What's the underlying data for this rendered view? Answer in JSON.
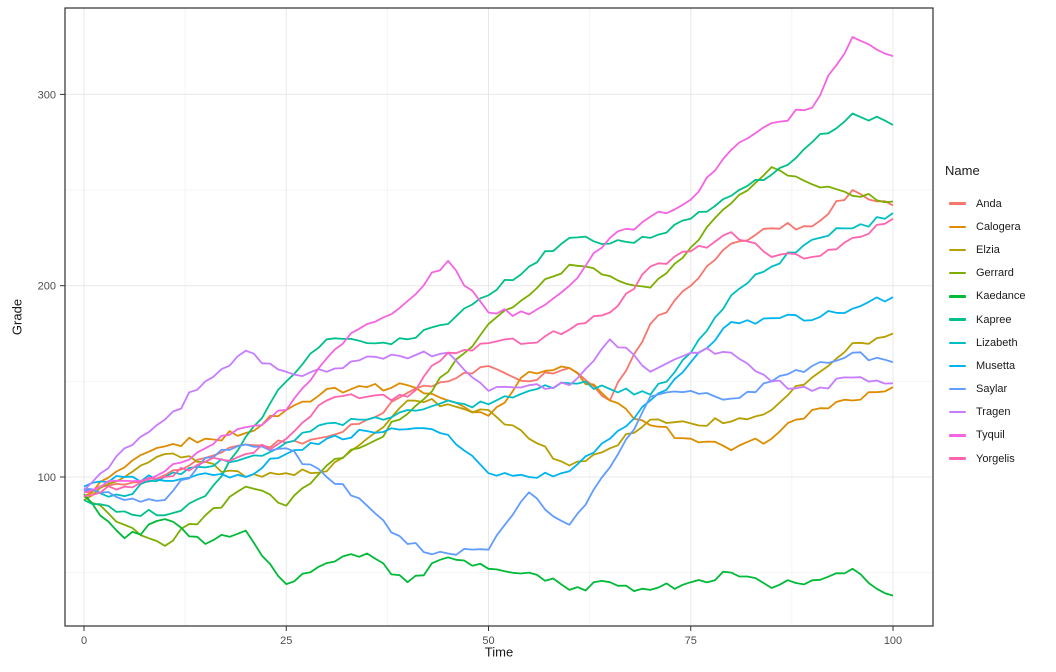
{
  "styles": {
    "background": "#ffffff",
    "grid_major_color": "#e8e8e8",
    "grid_minor_color": "#f4f4f4",
    "panel_border_color": "#2f2f2f",
    "tick_mark_color": "#333333",
    "tick_label_color": "#4d4d4d",
    "axis_title_color": "#1a1a1a"
  },
  "chart_data": {
    "type": "line",
    "title": "",
    "xlabel": "Time",
    "ylabel": "Grade",
    "legend_title": "Name",
    "legend_position": "right",
    "grid": true,
    "x_ticks": [
      0,
      25,
      50,
      75,
      100
    ],
    "x_minor_ticks": [
      12.5,
      37.5,
      62.5,
      87.5
    ],
    "y_ticks": [
      100,
      200,
      300
    ],
    "y_minor_ticks": [
      50,
      150,
      250
    ],
    "xlim": [
      -5,
      105
    ],
    "ylim": [
      22,
      345
    ],
    "x": [
      0,
      5,
      10,
      15,
      20,
      25,
      30,
      35,
      40,
      45,
      50,
      55,
      60,
      65,
      70,
      75,
      80,
      85,
      90,
      95,
      100
    ],
    "series": [
      {
        "name": "Anda",
        "color": "#F8766D",
        "values": [
          92,
          96,
          101,
          110,
          117,
          118,
          121,
          130,
          144,
          150,
          158,
          150,
          157,
          140,
          180,
          200,
          222,
          230,
          231,
          250,
          242
        ]
      },
      {
        "name": "Calogera",
        "color": "#DE8C00",
        "values": [
          90,
          105,
          116,
          120,
          123,
          135,
          146,
          147,
          148,
          140,
          132,
          155,
          157,
          140,
          127,
          120,
          114,
          120,
          135,
          140,
          147
        ]
      },
      {
        "name": "Elzia",
        "color": "#B79F00",
        "values": [
          88,
          100,
          112,
          108,
          100,
          102,
          103,
          120,
          140,
          138,
          135,
          120,
          106,
          115,
          130,
          128,
          129,
          135,
          152,
          170,
          175
        ]
      },
      {
        "name": "Gerrard",
        "color": "#7CAE00",
        "values": [
          90,
          75,
          64,
          80,
          95,
          85,
          106,
          117,
          133,
          155,
          180,
          195,
          211,
          205,
          199,
          220,
          243,
          262,
          253,
          247,
          244
        ]
      },
      {
        "name": "Kaedance",
        "color": "#00BA38",
        "values": [
          91,
          68,
          78,
          65,
          72,
          44,
          55,
          60,
          45,
          58,
          52,
          50,
          41,
          45,
          41,
          45,
          50,
          42,
          46,
          52,
          38
        ]
      },
      {
        "name": "Kapree",
        "color": "#00C08B",
        "values": [
          88,
          82,
          80,
          90,
          121,
          150,
          172,
          170,
          172,
          180,
          195,
          210,
          225,
          222,
          225,
          235,
          247,
          258,
          275,
          290,
          284
        ]
      },
      {
        "name": "Lizabeth",
        "color": "#00BFC4",
        "values": [
          93,
          90,
          100,
          105,
          110,
          118,
          128,
          130,
          135,
          140,
          138,
          145,
          149,
          146,
          143,
          165,
          195,
          210,
          224,
          230,
          238
        ]
      },
      {
        "name": "Musetta",
        "color": "#00B4F0",
        "values": [
          95,
          100,
          98,
          102,
          100,
          112,
          120,
          124,
          125,
          122,
          102,
          100,
          103,
          120,
          140,
          160,
          181,
          183,
          182,
          188,
          194
        ]
      },
      {
        "name": "Saylar",
        "color": "#619CFF",
        "values": [
          94,
          88,
          88,
          110,
          117,
          115,
          100,
          85,
          65,
          60,
          62,
          92,
          75,
          105,
          142,
          145,
          141,
          150,
          158,
          165,
          160
        ]
      },
      {
        "name": "Tragen",
        "color": "#C77CFF",
        "values": [
          93,
          115,
          130,
          150,
          166,
          155,
          155,
          163,
          162,
          165,
          145,
          148,
          148,
          172,
          155,
          165,
          165,
          150,
          145,
          152,
          149
        ]
      },
      {
        "name": "Tyquil",
        "color": "#F564E3",
        "values": [
          92,
          98,
          103,
          115,
          126,
          135,
          162,
          180,
          192,
          213,
          186,
          185,
          200,
          225,
          236,
          245,
          271,
          285,
          293,
          330,
          320
        ]
      },
      {
        "name": "Yorgelis",
        "color": "#FF64B0",
        "values": [
          90,
          95,
          100,
          108,
          112,
          120,
          140,
          142,
          142,
          165,
          170,
          170,
          177,
          186,
          210,
          218,
          228,
          215,
          215,
          225,
          235
        ]
      }
    ]
  }
}
